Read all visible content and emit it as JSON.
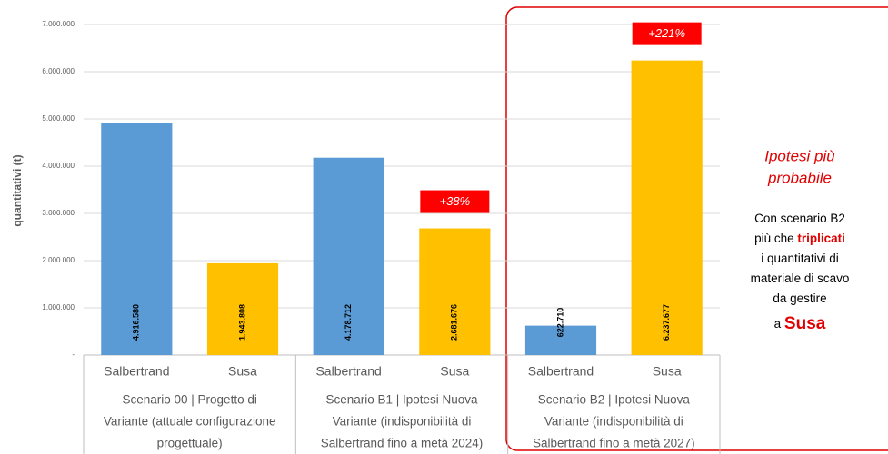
{
  "chart_data": {
    "type": "bar",
    "y_label": "quantitativi (t)",
    "categories": [
      "Salbertrand",
      "Susa",
      "Salbertrand",
      "Susa",
      "Salbertrand",
      "Susa"
    ],
    "values": [
      4916580,
      1943808,
      4178712,
      2681676,
      622710,
      6237677
    ],
    "value_labels": [
      "4.916.580",
      "1.943.808",
      "4.178.712",
      "2.681.676",
      "622.710",
      "6.237.677"
    ],
    "colors": [
      "#5b9bd5",
      "#ffc000",
      "#5b9bd5",
      "#ffc000",
      "#5b9bd5",
      "#ffc000"
    ],
    "groups": [
      [
        "Scenario 00  | Progetto di",
        "Variante (attuale configurazione",
        "progettuale)"
      ],
      [
        "Scenario B1  | Ipotesi Nuova",
        "Variante (indisponibilità di",
        "Salbertrand fino a metà 2024)"
      ],
      [
        "Scenario B2  | Ipotesi Nuova",
        "Variante (indisponibilità di",
        "Salbertrand fino a metà 2027)"
      ]
    ],
    "annotations": [
      {
        "index": 3,
        "text": "+38%"
      },
      {
        "index": 5,
        "text": "+221%"
      }
    ],
    "ylim": [
      0,
      7000000
    ],
    "yticks": [
      {
        "value": 0,
        "label": "-"
      },
      {
        "value": 1000000,
        "label": "1.000.000"
      },
      {
        "value": 2000000,
        "label": "2.000.000"
      },
      {
        "value": 3000000,
        "label": "3.000.000"
      },
      {
        "value": 4000000,
        "label": "4.000.000"
      },
      {
        "value": 5000000,
        "label": "5.000.000"
      },
      {
        "value": 6000000,
        "label": "6.000.000"
      },
      {
        "value": 7000000,
        "label": "7.000.000"
      }
    ],
    "grid": true,
    "note": {
      "title": [
        "Ipotesi più",
        "probabile"
      ],
      "body": [
        [
          "Con scenario B2"
        ],
        [
          "più che ",
          "triplicati"
        ],
        [
          "i quantitativi di"
        ],
        [
          "materiale di scavo"
        ],
        [
          "da gestire"
        ],
        [
          "a ",
          "Susa"
        ]
      ]
    }
  }
}
